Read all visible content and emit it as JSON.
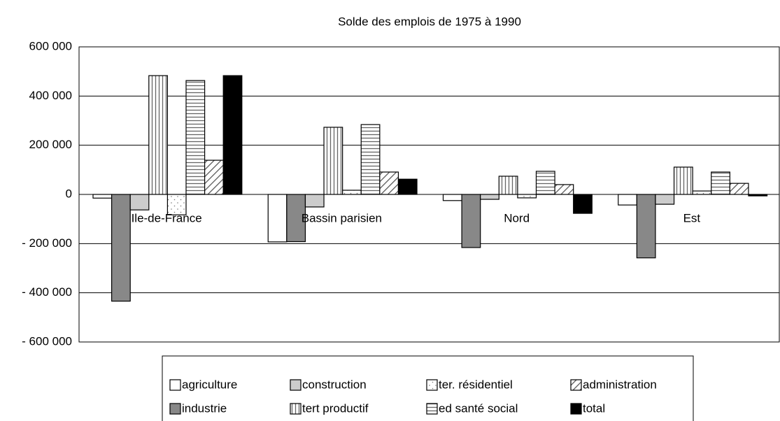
{
  "chart_data": {
    "type": "bar",
    "title": "Solde des emplois de 1975 à 1990",
    "categories": [
      "Ile-de-France",
      "Bassin parisien",
      "Nord",
      "Est"
    ],
    "series": [
      {
        "name": "agriculture",
        "color": "#ffffff",
        "pattern": "solid",
        "values": [
          -15000,
          -193000,
          -25000,
          -43000
        ]
      },
      {
        "name": "industrie",
        "color": "#888888",
        "pattern": "solid",
        "values": [
          -434000,
          -192000,
          -216000,
          -258000
        ]
      },
      {
        "name": "construction",
        "color": "#cccccc",
        "pattern": "solid",
        "values": [
          -63000,
          -51000,
          -20000,
          -40000
        ]
      },
      {
        "name": "tert productif",
        "color": "#ffffff",
        "pattern": "vertical",
        "values": [
          483000,
          273000,
          74000,
          111000
        ]
      },
      {
        "name": "ter. résidentiel",
        "color": "#ffffff",
        "pattern": "dots",
        "values": [
          -83000,
          17000,
          -14000,
          14000
        ]
      },
      {
        "name": "ed santé social",
        "color": "#ffffff",
        "pattern": "horizontal",
        "values": [
          463000,
          284000,
          94000,
          91000
        ]
      },
      {
        "name": "administration",
        "color": "#ffffff",
        "pattern": "diagonal",
        "values": [
          139000,
          91000,
          40000,
          45000
        ]
      },
      {
        "name": "total",
        "color": "#000000",
        "pattern": "solid",
        "values": [
          483000,
          62000,
          -77000,
          -6000
        ]
      }
    ],
    "ylim": [
      -600000,
      600000
    ],
    "yticks": [
      {
        "value": -600000,
        "label": "- 600 000"
      },
      {
        "value": -400000,
        "label": "- 400 000"
      },
      {
        "value": -200000,
        "label": "- 200 000"
      },
      0,
      {
        "value": 200000,
        "label": "200 000"
      },
      {
        "value": 400000,
        "label": "400 000"
      },
      {
        "value": 600000,
        "label": "600 000"
      }
    ],
    "grid": true,
    "legend": "bottom"
  }
}
